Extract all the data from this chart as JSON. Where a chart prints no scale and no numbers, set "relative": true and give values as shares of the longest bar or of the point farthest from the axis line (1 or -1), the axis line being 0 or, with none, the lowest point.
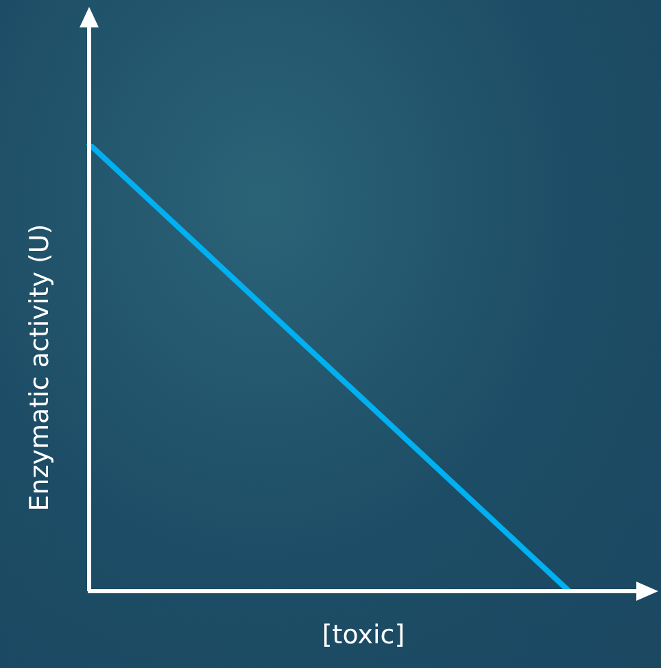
{
  "chart_data": {
    "type": "line",
    "xlabel": "[toxic]",
    "ylabel": "Enzymatic activity (U)",
    "categories": [
      null,
      null
    ],
    "relative": true,
    "series": [
      {
        "color": "#00b0f0",
        "values": [
          1,
          0
        ]
      }
    ],
    "legend": false,
    "marker": "none",
    "line_style": "solid",
    "tick_labels": false
  }
}
